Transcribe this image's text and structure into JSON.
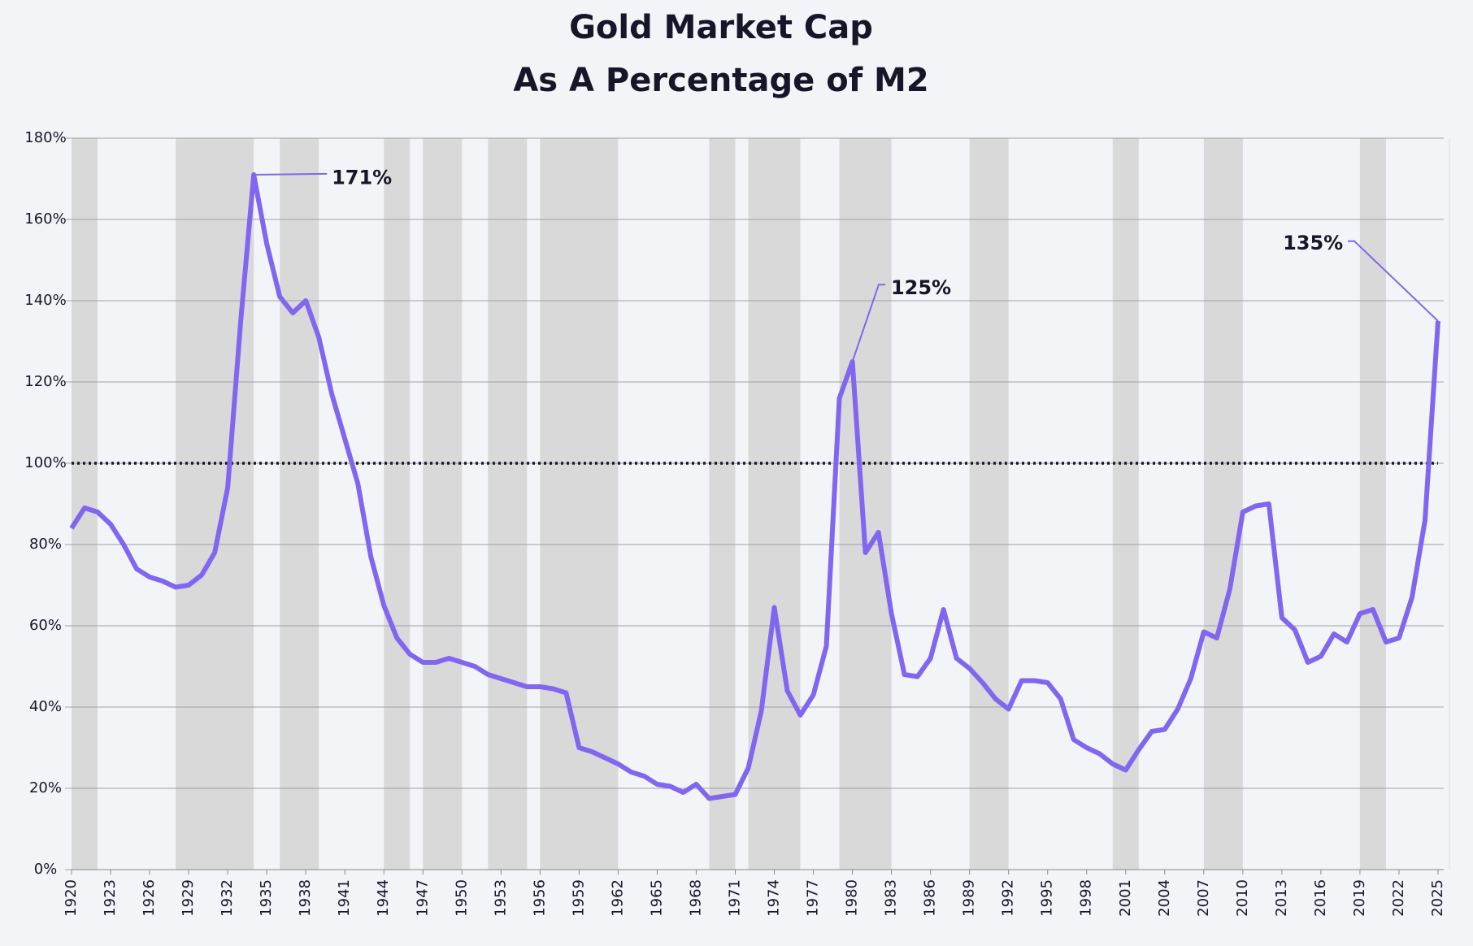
{
  "chart_data": {
    "type": "line",
    "title": "Gold Market Cap",
    "subtitle": "As A Percentage of M2",
    "x": [
      1920,
      1921,
      1922,
      1923,
      1924,
      1925,
      1926,
      1927,
      1928,
      1929,
      1930,
      1931,
      1932,
      1933,
      1934,
      1935,
      1936,
      1937,
      1938,
      1939,
      1940,
      1941,
      1942,
      1943,
      1944,
      1945,
      1946,
      1947,
      1948,
      1949,
      1950,
      1951,
      1952,
      1953,
      1954,
      1955,
      1956,
      1957,
      1958,
      1959,
      1960,
      1961,
      1962,
      1963,
      1964,
      1965,
      1966,
      1967,
      1968,
      1969,
      1970,
      1971,
      1972,
      1973,
      1974,
      1975,
      1976,
      1977,
      1978,
      1979,
      1980,
      1981,
      1982,
      1983,
      1984,
      1985,
      1986,
      1987,
      1988,
      1989,
      1990,
      1991,
      1992,
      1993,
      1994,
      1995,
      1996,
      1997,
      1998,
      1999,
      2000,
      2001,
      2002,
      2003,
      2004,
      2005,
      2006,
      2007,
      2008,
      2009,
      2010,
      2011,
      2012,
      2013,
      2014,
      2015,
      2016,
      2017,
      2018,
      2019,
      2020,
      2021,
      2022,
      2023,
      2024,
      2025
    ],
    "values": [
      84,
      89,
      88,
      85,
      80,
      74,
      72,
      71,
      69.5,
      70,
      72.5,
      78,
      94,
      135,
      171,
      154,
      141,
      137,
      140,
      131,
      117,
      106,
      95,
      77,
      65,
      57,
      53,
      51,
      51,
      52,
      51,
      50,
      48,
      47,
      46,
      45,
      45,
      44.5,
      43.5,
      30,
      29,
      27.5,
      26,
      24,
      23,
      21,
      20.5,
      19,
      21,
      17.5,
      18,
      18.5,
      25,
      39,
      64.5,
      44,
      38,
      43,
      55,
      116,
      125,
      78,
      83,
      63,
      48,
      47.5,
      52,
      64,
      52,
      49.5,
      46,
      42,
      39.5,
      46.5,
      46.5,
      46,
      42,
      32,
      30,
      28.5,
      26,
      24.5,
      29.5,
      34,
      34.5,
      39.5,
      47,
      58.5,
      57,
      69,
      88,
      89.5,
      90,
      62,
      59,
      51,
      52.5,
      58,
      56,
      63,
      64,
      56,
      57,
      67,
      86,
      135
    ],
    "color": "#8166f0",
    "xlim": [
      1920,
      2025
    ],
    "xticks": [
      1920,
      1923,
      1926,
      1929,
      1932,
      1935,
      1938,
      1941,
      1944,
      1947,
      1950,
      1953,
      1956,
      1959,
      1962,
      1965,
      1968,
      1971,
      1974,
      1977,
      1980,
      1983,
      1986,
      1989,
      1992,
      1995,
      1998,
      2001,
      2004,
      2007,
      2010,
      2013,
      2016,
      2019,
      2022,
      2025
    ],
    "ylim": [
      0,
      180
    ],
    "yticks": [
      {
        "value": 0,
        "label": "0%"
      },
      {
        "value": 20,
        "label": "20%"
      },
      {
        "value": 40,
        "label": "40%"
      },
      {
        "value": 60,
        "label": "60%"
      },
      {
        "value": 80,
        "label": "80%"
      },
      {
        "value": 100,
        "label": "100%"
      },
      {
        "value": 120,
        "label": "120%"
      },
      {
        "value": 140,
        "label": "140%"
      },
      {
        "value": 160,
        "label": "160%"
      },
      {
        "value": 180,
        "label": "180%"
      }
    ],
    "grid": true,
    "reference_line": 100,
    "shaded_periods": [
      [
        1920,
        1922
      ],
      [
        1928,
        1934
      ],
      [
        1936,
        1939
      ],
      [
        1944,
        1946
      ],
      [
        1947,
        1950
      ],
      [
        1952,
        1955
      ],
      [
        1956,
        1962
      ],
      [
        1969,
        1971
      ],
      [
        1972,
        1976
      ],
      [
        1979,
        1983
      ],
      [
        1989,
        1992
      ],
      [
        2000,
        2002
      ],
      [
        2007,
        2010
      ],
      [
        2019,
        2021
      ]
    ],
    "annotations": [
      {
        "x": 1934,
        "text": "171%"
      },
      {
        "x": 1980,
        "text": "125%"
      },
      {
        "x": 2025,
        "text": "135%"
      }
    ]
  }
}
